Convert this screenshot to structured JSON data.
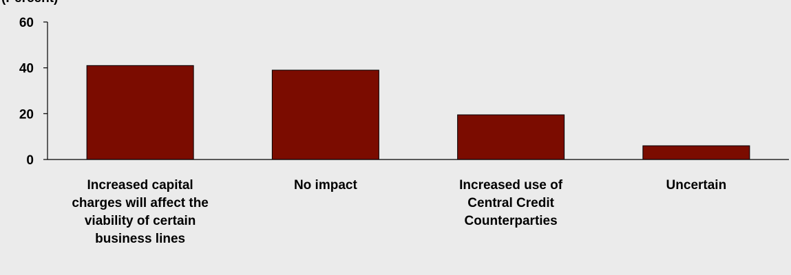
{
  "chart_data": {
    "type": "bar",
    "ylabel": "(Percent)",
    "ylim": [
      0,
      60
    ],
    "yticks": [
      0,
      20,
      40,
      60
    ],
    "grid": false,
    "bar_color": "#7b0c00",
    "background_color": "#ebebeb",
    "categories": [
      [
        "Increased capital",
        "charges will affect the",
        "viability of certain",
        "business lines"
      ],
      [
        "No impact"
      ],
      [
        "Increased use of",
        "Central Credit",
        "Counterparties"
      ],
      [
        "Uncertain"
      ]
    ],
    "values": [
      41,
      39,
      19.5,
      6
    ]
  }
}
